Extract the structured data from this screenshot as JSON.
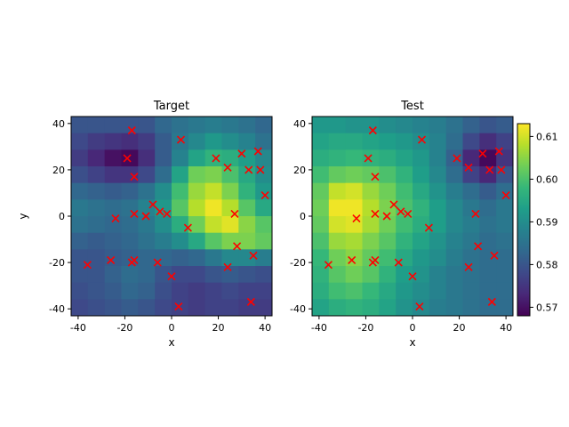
{
  "chart_data": {
    "type": "heatmap",
    "colormap": "viridis",
    "marker_color": "#ff0000",
    "marker_symbol": "x",
    "panels": [
      {
        "title": "Target",
        "xlabel": "x",
        "ylabel": "y",
        "xlim": [
          -43,
          43
        ],
        "ylim": [
          -43,
          43
        ],
        "xticks": [
          "-40",
          "-20",
          "0",
          "20",
          "40"
        ],
        "yticks": [
          "-40",
          "-20",
          "0",
          "20",
          "40"
        ],
        "grid": false,
        "rows_top_to_bottom": [
          [
            0.58,
            0.58,
            0.58,
            0.58,
            0.58,
            0.583,
            0.585,
            0.586,
            0.587,
            0.586,
            0.585,
            0.583
          ],
          [
            0.578,
            0.576,
            0.575,
            0.574,
            0.576,
            0.581,
            0.586,
            0.589,
            0.592,
            0.59,
            0.588,
            0.585
          ],
          [
            0.576,
            0.573,
            0.57,
            0.569,
            0.574,
            0.581,
            0.588,
            0.594,
            0.597,
            0.596,
            0.593,
            0.589
          ],
          [
            0.579,
            0.577,
            0.575,
            0.575,
            0.578,
            0.584,
            0.594,
            0.603,
            0.604,
            0.6,
            0.595,
            0.59
          ],
          [
            0.583,
            0.582,
            0.581,
            0.582,
            0.585,
            0.59,
            0.599,
            0.606,
            0.609,
            0.604,
            0.597,
            0.592
          ],
          [
            0.586,
            0.585,
            0.584,
            0.585,
            0.588,
            0.592,
            0.601,
            0.608,
            0.612,
            0.608,
            0.601,
            0.595
          ],
          [
            0.585,
            0.584,
            0.583,
            0.584,
            0.586,
            0.59,
            0.596,
            0.603,
            0.609,
            0.611,
            0.605,
            0.601
          ],
          [
            0.582,
            0.581,
            0.582,
            0.583,
            0.585,
            0.587,
            0.59,
            0.595,
            0.601,
            0.604,
            0.604,
            0.602
          ],
          [
            0.58,
            0.58,
            0.581,
            0.582,
            0.583,
            0.583,
            0.582,
            0.583,
            0.586,
            0.589,
            0.589,
            0.587
          ],
          [
            0.58,
            0.58,
            0.582,
            0.584,
            0.583,
            0.58,
            0.578,
            0.578,
            0.58,
            0.581,
            0.58,
            0.579
          ],
          [
            0.579,
            0.58,
            0.581,
            0.583,
            0.582,
            0.579,
            0.577,
            0.576,
            0.577,
            0.578,
            0.577,
            0.577
          ],
          [
            0.578,
            0.579,
            0.58,
            0.581,
            0.58,
            0.578,
            0.577,
            0.576,
            0.577,
            0.577,
            0.576,
            0.576
          ]
        ]
      },
      {
        "title": "Test",
        "xlabel": "x",
        "xlim": [
          -43,
          43
        ],
        "ylim": [
          -43,
          43
        ],
        "xticks": [
          "-40",
          "-20",
          "0",
          "20",
          "40"
        ],
        "yticks": [
          "-40",
          "-20",
          "0",
          "20",
          "40"
        ],
        "grid": false,
        "rows_top_to_bottom": [
          [
            0.592,
            0.592,
            0.591,
            0.591,
            0.59,
            0.589,
            0.588,
            0.587,
            0.585,
            0.582,
            0.58,
            0.581
          ],
          [
            0.594,
            0.595,
            0.595,
            0.594,
            0.593,
            0.592,
            0.59,
            0.588,
            0.584,
            0.578,
            0.574,
            0.577
          ],
          [
            0.596,
            0.597,
            0.598,
            0.597,
            0.596,
            0.594,
            0.592,
            0.588,
            0.582,
            0.573,
            0.569,
            0.575
          ],
          [
            0.599,
            0.602,
            0.603,
            0.602,
            0.6,
            0.597,
            0.593,
            0.589,
            0.584,
            0.577,
            0.573,
            0.58
          ],
          [
            0.602,
            0.609,
            0.61,
            0.606,
            0.603,
            0.599,
            0.595,
            0.591,
            0.587,
            0.584,
            0.581,
            0.584
          ],
          [
            0.603,
            0.612,
            0.612,
            0.608,
            0.604,
            0.6,
            0.597,
            0.593,
            0.589,
            0.586,
            0.584,
            0.586
          ],
          [
            0.602,
            0.61,
            0.611,
            0.607,
            0.603,
            0.599,
            0.596,
            0.593,
            0.589,
            0.587,
            0.585,
            0.586
          ],
          [
            0.6,
            0.606,
            0.607,
            0.604,
            0.601,
            0.597,
            0.594,
            0.591,
            0.588,
            0.586,
            0.584,
            0.585
          ],
          [
            0.598,
            0.603,
            0.605,
            0.602,
            0.599,
            0.595,
            0.592,
            0.59,
            0.587,
            0.585,
            0.584,
            0.584
          ],
          [
            0.597,
            0.601,
            0.603,
            0.601,
            0.597,
            0.593,
            0.591,
            0.588,
            0.586,
            0.585,
            0.584,
            0.584
          ],
          [
            0.596,
            0.599,
            0.6,
            0.598,
            0.595,
            0.592,
            0.59,
            0.588,
            0.586,
            0.585,
            0.584,
            0.584
          ],
          [
            0.594,
            0.596,
            0.597,
            0.596,
            0.594,
            0.591,
            0.589,
            0.587,
            0.586,
            0.585,
            0.584,
            0.584
          ]
        ]
      }
    ],
    "colorbar": {
      "vmin": 0.568,
      "vmax": 0.613,
      "ticks": [
        "0.57",
        "0.58",
        "0.59",
        "0.60",
        "0.61"
      ],
      "tick_values": [
        0.57,
        0.58,
        0.59,
        0.6,
        0.61
      ]
    },
    "points": [
      [
        -17,
        37
      ],
      [
        4,
        33
      ],
      [
        -19,
        25
      ],
      [
        19,
        25
      ],
      [
        30,
        27
      ],
      [
        37,
        28
      ],
      [
        24,
        21
      ],
      [
        33,
        20
      ],
      [
        38,
        20
      ],
      [
        -16,
        17
      ],
      [
        40,
        9
      ],
      [
        -8,
        5
      ],
      [
        -5,
        2
      ],
      [
        27,
        1
      ],
      [
        -2,
        1
      ],
      [
        -16,
        1
      ],
      [
        -11,
        0
      ],
      [
        -24,
        -1
      ],
      [
        7,
        -5
      ],
      [
        28,
        -13
      ],
      [
        35,
        -17
      ],
      [
        -26,
        -19
      ],
      [
        -16,
        -19
      ],
      [
        -6,
        -20
      ],
      [
        -17,
        -20
      ],
      [
        -36,
        -21
      ],
      [
        24,
        -22
      ],
      [
        0,
        -26
      ],
      [
        34,
        -37
      ],
      [
        3,
        -39
      ]
    ]
  }
}
